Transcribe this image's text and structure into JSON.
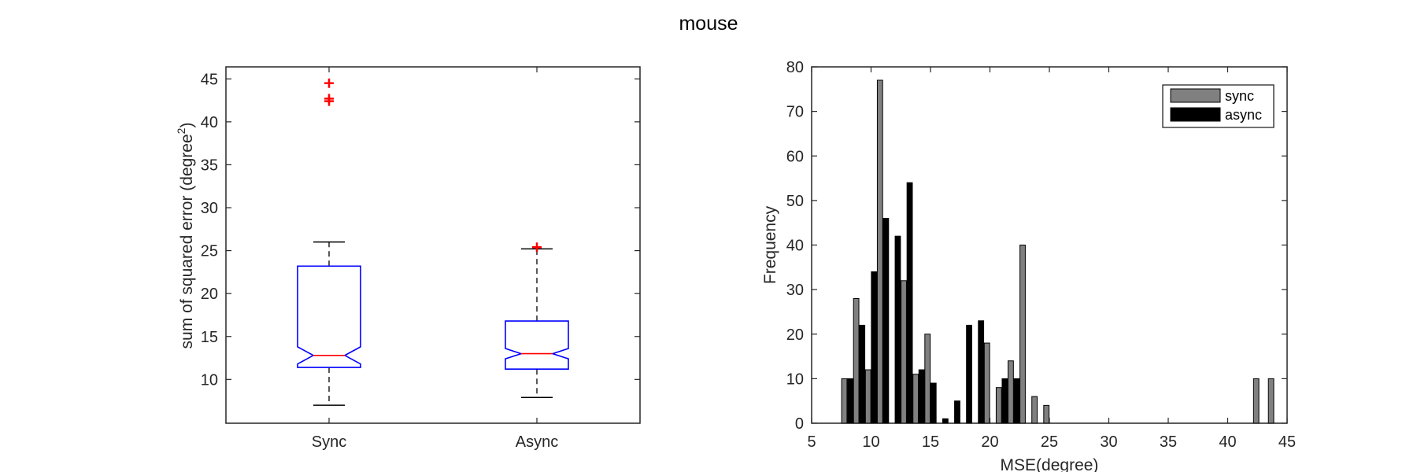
{
  "title": "mouse",
  "chart_data": [
    {
      "type": "boxplot",
      "notched": true,
      "ylabel": "sum of squared error (degree",
      "ylabel_superscript": "2",
      "ylabel_suffix": ")",
      "ylim": [
        4.9,
        46.4
      ],
      "yticks": [
        10,
        15,
        20,
        25,
        30,
        35,
        40,
        45
      ],
      "categories": [
        "Sync",
        "Async"
      ],
      "groups": [
        {
          "name": "Sync",
          "median": 12.8,
          "q1": 11.4,
          "q3": 23.2,
          "notch_low": 11.8,
          "notch_high": 13.8,
          "whisker_low": 7.0,
          "whisker_high": 26.0,
          "outliers": [
            44.5,
            42.7,
            42.4
          ]
        },
        {
          "name": "Async",
          "median": 13.0,
          "q1": 11.2,
          "q3": 16.8,
          "notch_low": 12.4,
          "notch_high": 13.6,
          "whisker_low": 7.9,
          "whisker_high": 25.2,
          "outliers": [
            25.4
          ]
        }
      ],
      "colors": {
        "box": "#0000ff",
        "median": "#ff0000",
        "outlier": "#ff0000",
        "whisker": "#000000"
      }
    },
    {
      "type": "bar",
      "xlabel": "MSE(degree)",
      "ylabel": "Frequency",
      "xlim": [
        5,
        45
      ],
      "ylim": [
        0,
        80
      ],
      "xticks": [
        5,
        10,
        15,
        20,
        25,
        30,
        35,
        40,
        45
      ],
      "yticks": [
        0,
        10,
        20,
        30,
        40,
        50,
        60,
        70,
        80
      ],
      "legend_position": "top-right",
      "series": [
        {
          "name": "sync",
          "color": "#808080",
          "points": [
            {
              "x": 7.75,
              "y": 10
            },
            {
              "x": 8.75,
              "y": 28
            },
            {
              "x": 9.75,
              "y": 12
            },
            {
              "x": 10.75,
              "y": 77
            },
            {
              "x": 11.75,
              "y": 0
            },
            {
              "x": 12.75,
              "y": 32
            },
            {
              "x": 13.75,
              "y": 11
            },
            {
              "x": 14.75,
              "y": 20
            },
            {
              "x": 15.75,
              "y": 0
            },
            {
              "x": 18.75,
              "y": 0
            },
            {
              "x": 19.75,
              "y": 18
            },
            {
              "x": 20.75,
              "y": 8
            },
            {
              "x": 21.75,
              "y": 14
            },
            {
              "x": 22.75,
              "y": 40
            },
            {
              "x": 23.75,
              "y": 6
            },
            {
              "x": 24.75,
              "y": 4
            },
            {
              "x": 42.4,
              "y": 10
            },
            {
              "x": 43.65,
              "y": 10
            }
          ]
        },
        {
          "name": "async",
          "color": "#000000",
          "points": [
            {
              "x": 8.25,
              "y": 10
            },
            {
              "x": 9.25,
              "y": 22
            },
            {
              "x": 10.25,
              "y": 34
            },
            {
              "x": 11.25,
              "y": 46
            },
            {
              "x": 12.25,
              "y": 42
            },
            {
              "x": 13.25,
              "y": 54
            },
            {
              "x": 14.25,
              "y": 12
            },
            {
              "x": 15.25,
              "y": 9
            },
            {
              "x": 16.25,
              "y": 1
            },
            {
              "x": 17.25,
              "y": 5
            },
            {
              "x": 18.25,
              "y": 22
            },
            {
              "x": 19.25,
              "y": 23
            },
            {
              "x": 20.25,
              "y": 0
            },
            {
              "x": 21.25,
              "y": 10
            },
            {
              "x": 22.25,
              "y": 10
            },
            {
              "x": 23.25,
              "y": 0
            }
          ]
        }
      ]
    }
  ]
}
